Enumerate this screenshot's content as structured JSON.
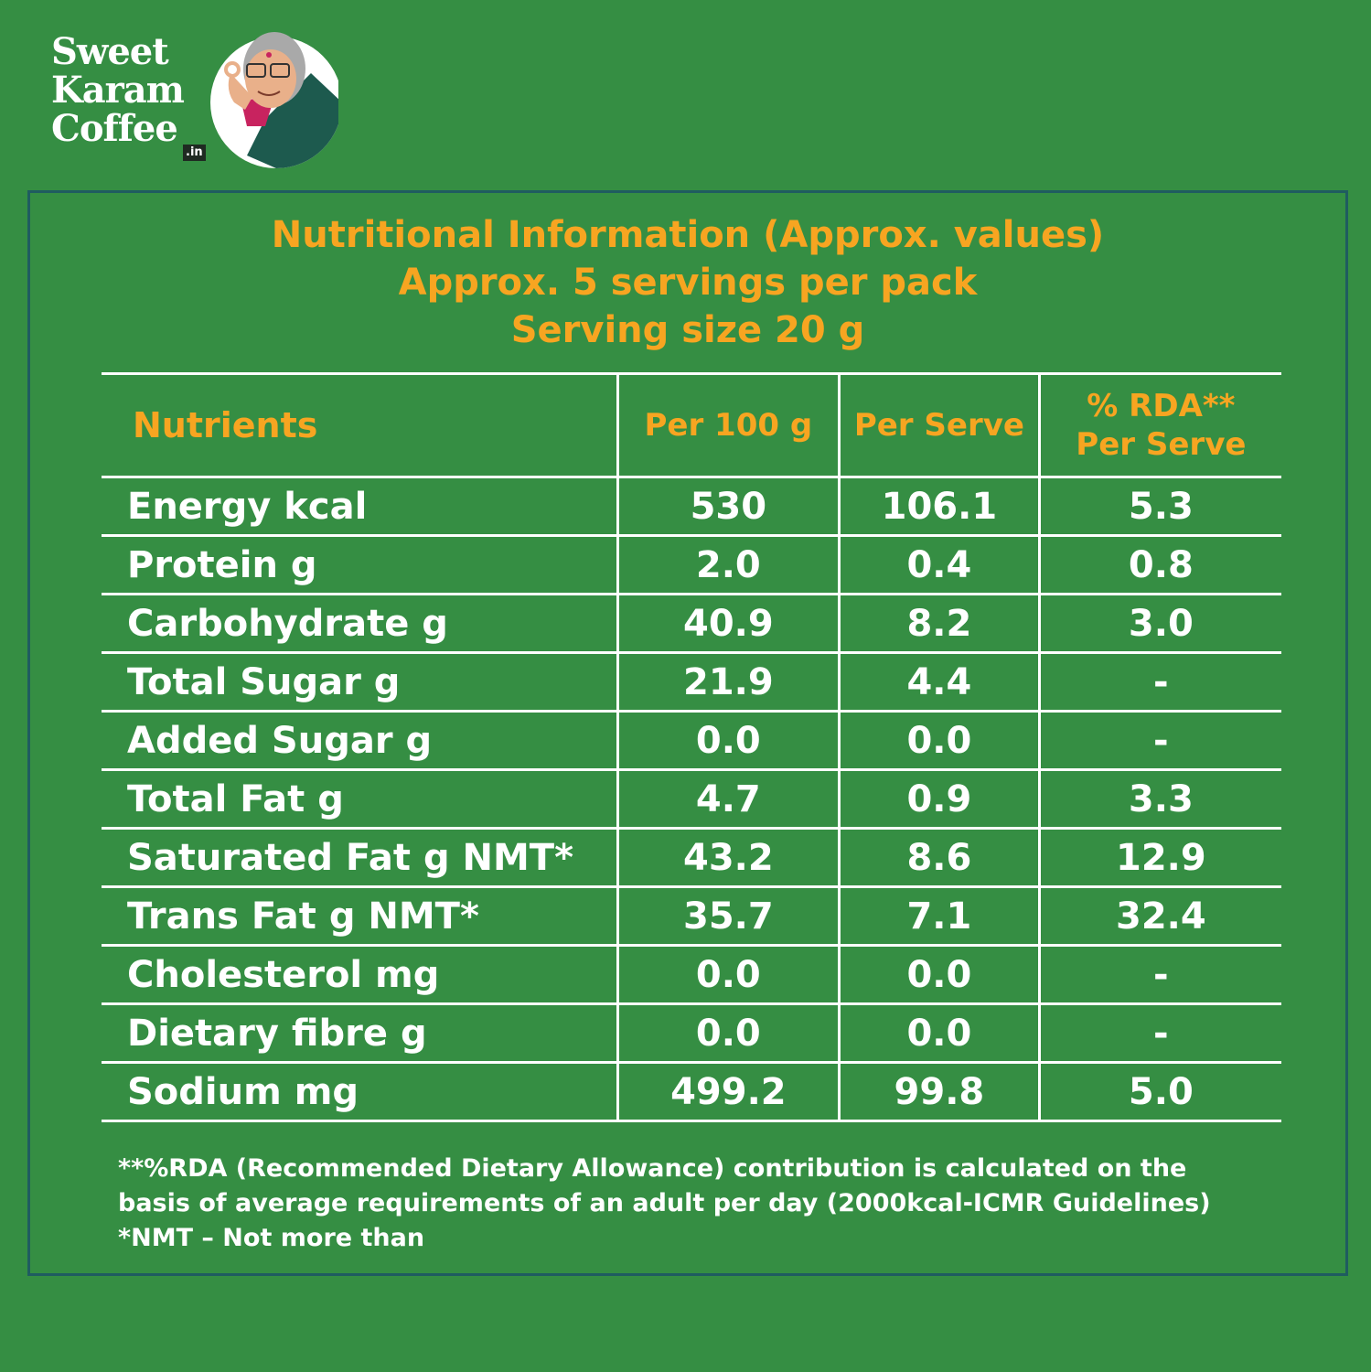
{
  "brand": {
    "lines": [
      "Sweet",
      "Karam",
      "Coffee"
    ],
    "tld": ".in"
  },
  "panel": {
    "title": "Nutritional Information (Approx. values)",
    "servings": "Approx. 5 servings per pack",
    "serving_size": "Serving size  20 g"
  },
  "table": {
    "headers": [
      "Nutrients",
      "Per 100 g",
      "Per Serve",
      "% RDA**",
      "Per Serve"
    ],
    "rows": [
      {
        "nutrient": "Energy kcal",
        "per100": "530",
        "perServe": "106.1",
        "rda": "5.3"
      },
      {
        "nutrient": "Protein g",
        "per100": "2.0",
        "perServe": "0.4",
        "rda": "0.8"
      },
      {
        "nutrient": "Carbohydrate g",
        "per100": "40.9",
        "perServe": "8.2",
        "rda": "3.0"
      },
      {
        "nutrient": "Total Sugar g",
        "per100": "21.9",
        "perServe": "4.4",
        "rda": "-"
      },
      {
        "nutrient": "Added Sugar g",
        "per100": "0.0",
        "perServe": "0.0",
        "rda": "-"
      },
      {
        "nutrient": "Total Fat g",
        "per100": "4.7",
        "perServe": "0.9",
        "rda": "3.3"
      },
      {
        "nutrient": "Saturated Fat g  NMT*",
        "per100": "43.2",
        "perServe": "8.6",
        "rda": "12.9"
      },
      {
        "nutrient": "Trans Fat g NMT*",
        "per100": "35.7",
        "perServe": "7.1",
        "rda": "32.4"
      },
      {
        "nutrient": "Cholesterol mg",
        "per100": "0.0",
        "perServe": "0.0",
        "rda": "-"
      },
      {
        "nutrient": "Dietary fibre g",
        "per100": "0.0",
        "perServe": "0.0",
        "rda": "-"
      },
      {
        "nutrient": "Sodium mg",
        "per100": "499.2",
        "perServe": "99.8",
        "rda": "5.0"
      }
    ]
  },
  "footnotes": [
    "**%RDA (Recommended Dietary Allowance) contribution is calculated on the",
    "basis of average requirements of an adult per day (2000kcal-ICMR Guidelines)",
    "*NMT – Not more than"
  ],
  "colors": {
    "background": "#358e43",
    "accent": "#f7a521",
    "border": "#1f5c60",
    "text": "#ffffff"
  }
}
